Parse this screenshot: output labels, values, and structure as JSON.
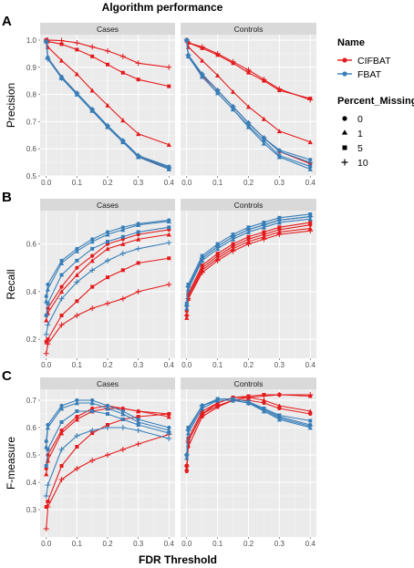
{
  "title": "Algorithm performance",
  "xlabel": "FDR Threshold",
  "legend": {
    "name_title": "Name",
    "names": [
      "CIFBAT",
      "FBAT"
    ],
    "missing_title": "Percent_Missing",
    "missing_levels": [
      "0",
      "1",
      "5",
      "10"
    ]
  },
  "colors": {
    "CIFBAT": "#e41a1c",
    "FBAT": "#377eb8",
    "panel_bg": "#ebebeb",
    "grid": "#ffffff",
    "strip_bg": "#d9d9d9"
  },
  "chart_data": [
    {
      "type": "line",
      "panel_label": "A",
      "ylabel": "Precision",
      "ylim": [
        0.5,
        1.02
      ],
      "yticks": [
        0.5,
        0.6,
        0.7,
        0.8,
        0.9,
        1.0
      ],
      "ytick_labels": [
        "0.5",
        "0.6",
        "0.7",
        "0.8",
        "0.9",
        "1.0"
      ],
      "facets": [
        {
          "strip": "Cases",
          "series": [
            {
              "name": "CIFBAT",
              "missing": "0",
              "values": [
                1.0,
                0.935,
                0.865,
                0.805,
                0.74,
                0.68,
                0.625,
                0.57,
                0.53
              ]
            },
            {
              "name": "CIFBAT",
              "missing": "1",
              "values": [
                1.0,
                0.975,
                0.925,
                0.875,
                0.815,
                0.76,
                0.705,
                0.655,
                0.615
              ]
            },
            {
              "name": "CIFBAT",
              "missing": "5",
              "values": [
                1.0,
                0.995,
                0.985,
                0.965,
                0.94,
                0.91,
                0.88,
                0.855,
                0.83
              ]
            },
            {
              "name": "CIFBAT",
              "missing": "10",
              "values": [
                1.0,
                1.0,
                0.998,
                0.99,
                0.975,
                0.96,
                0.94,
                0.915,
                0.9
              ]
            },
            {
              "name": "FBAT",
              "missing": "0",
              "values": [
                0.995,
                0.935,
                0.865,
                0.805,
                0.745,
                0.685,
                0.63,
                0.575,
                0.535
              ]
            },
            {
              "name": "FBAT",
              "missing": "1",
              "values": [
                0.995,
                0.935,
                0.86,
                0.8,
                0.74,
                0.68,
                0.625,
                0.57,
                0.525
              ]
            },
            {
              "name": "FBAT",
              "missing": "5",
              "values": [
                0.995,
                0.935,
                0.86,
                0.8,
                0.74,
                0.68,
                0.625,
                0.57,
                0.525
              ]
            },
            {
              "name": "FBAT",
              "missing": "10",
              "values": [
                0.995,
                0.93,
                0.86,
                0.805,
                0.745,
                0.685,
                0.63,
                0.575,
                0.53
              ]
            }
          ]
        },
        {
          "strip": "Controls",
          "series": [
            {
              "name": "CIFBAT",
              "missing": "0",
              "values": [
                1.0,
                0.94,
                0.87,
                0.815,
                0.755,
                0.695,
                0.64,
                0.59,
                0.545
              ]
            },
            {
              "name": "CIFBAT",
              "missing": "1",
              "values": [
                1.0,
                0.975,
                0.925,
                0.87,
                0.81,
                0.755,
                0.71,
                0.665,
                0.625
              ]
            },
            {
              "name": "CIFBAT",
              "missing": "5",
              "values": [
                1.0,
                0.99,
                0.97,
                0.945,
                0.915,
                0.88,
                0.85,
                0.815,
                0.785
              ]
            },
            {
              "name": "CIFBAT",
              "missing": "10",
              "values": [
                1.0,
                0.99,
                0.975,
                0.95,
                0.92,
                0.89,
                0.855,
                0.82,
                0.78
              ]
            },
            {
              "name": "FBAT",
              "missing": "0",
              "values": [
                1.0,
                0.945,
                0.875,
                0.815,
                0.755,
                0.695,
                0.64,
                0.595,
                0.56
              ]
            },
            {
              "name": "FBAT",
              "missing": "1",
              "values": [
                1.0,
                0.94,
                0.865,
                0.805,
                0.745,
                0.68,
                0.62,
                0.57,
                0.525
              ]
            },
            {
              "name": "FBAT",
              "missing": "5",
              "values": [
                1.0,
                0.94,
                0.865,
                0.805,
                0.745,
                0.685,
                0.63,
                0.575,
                0.535
              ]
            },
            {
              "name": "FBAT",
              "missing": "10",
              "values": [
                1.0,
                0.945,
                0.875,
                0.815,
                0.755,
                0.695,
                0.64,
                0.59,
                0.55
              ]
            }
          ]
        }
      ]
    },
    {
      "type": "line",
      "panel_label": "B",
      "ylabel": "Recall",
      "ylim": [
        0.12,
        0.74
      ],
      "yticks": [
        0.2,
        0.4,
        0.6
      ],
      "ytick_labels": [
        "0.2",
        "0.4",
        "0.6"
      ],
      "facets": [
        {
          "strip": "Cases",
          "series": [
            {
              "name": "CIFBAT",
              "missing": "0",
              "values": [
                0.3,
                0.33,
                0.42,
                0.5,
                0.55,
                0.6,
                0.62,
                0.64,
                0.66
              ]
            },
            {
              "name": "CIFBAT",
              "missing": "1",
              "values": [
                0.28,
                0.31,
                0.4,
                0.47,
                0.53,
                0.58,
                0.6,
                0.62,
                0.64
              ]
            },
            {
              "name": "CIFBAT",
              "missing": "5",
              "values": [
                0.19,
                0.2,
                0.3,
                0.36,
                0.42,
                0.46,
                0.49,
                0.52,
                0.54
              ]
            },
            {
              "name": "CIFBAT",
              "missing": "10",
              "values": [
                0.14,
                0.18,
                0.26,
                0.3,
                0.33,
                0.35,
                0.37,
                0.4,
                0.43
              ]
            },
            {
              "name": "FBAT",
              "missing": "0",
              "values": [
                0.38,
                0.43,
                0.53,
                0.58,
                0.62,
                0.65,
                0.67,
                0.685,
                0.7
              ]
            },
            {
              "name": "FBAT",
              "missing": "1",
              "values": [
                0.36,
                0.41,
                0.52,
                0.57,
                0.61,
                0.64,
                0.66,
                0.68,
                0.695
              ]
            },
            {
              "name": "FBAT",
              "missing": "5",
              "values": [
                0.3,
                0.35,
                0.47,
                0.53,
                0.58,
                0.61,
                0.63,
                0.65,
                0.67
              ]
            },
            {
              "name": "FBAT",
              "missing": "10",
              "values": [
                0.22,
                0.26,
                0.37,
                0.44,
                0.49,
                0.53,
                0.56,
                0.58,
                0.605
              ]
            }
          ]
        },
        {
          "strip": "Controls",
          "series": [
            {
              "name": "CIFBAT",
              "missing": "0",
              "values": [
                0.3,
                0.38,
                0.5,
                0.55,
                0.59,
                0.62,
                0.64,
                0.66,
                0.68
              ]
            },
            {
              "name": "CIFBAT",
              "missing": "1",
              "values": [
                0.29,
                0.37,
                0.49,
                0.54,
                0.58,
                0.61,
                0.63,
                0.65,
                0.665
              ]
            },
            {
              "name": "CIFBAT",
              "missing": "5",
              "values": [
                0.32,
                0.39,
                0.51,
                0.56,
                0.6,
                0.63,
                0.65,
                0.67,
                0.69
              ]
            },
            {
              "name": "CIFBAT",
              "missing": "10",
              "values": [
                0.3,
                0.37,
                0.48,
                0.53,
                0.57,
                0.6,
                0.62,
                0.64,
                0.655
              ]
            },
            {
              "name": "FBAT",
              "missing": "0",
              "values": [
                0.34,
                0.42,
                0.54,
                0.59,
                0.63,
                0.66,
                0.68,
                0.7,
                0.715
              ]
            },
            {
              "name": "FBAT",
              "missing": "1",
              "values": [
                0.33,
                0.41,
                0.53,
                0.58,
                0.62,
                0.65,
                0.67,
                0.69,
                0.705
              ]
            },
            {
              "name": "FBAT",
              "missing": "5",
              "values": [
                0.35,
                0.43,
                0.55,
                0.6,
                0.64,
                0.67,
                0.69,
                0.71,
                0.725
              ]
            },
            {
              "name": "FBAT",
              "missing": "10",
              "values": [
                0.34,
                0.42,
                0.54,
                0.59,
                0.63,
                0.66,
                0.68,
                0.7,
                0.715
              ]
            }
          ]
        }
      ]
    },
    {
      "type": "line",
      "panel_label": "C",
      "ylabel": "F-measure",
      "ylim": [
        0.2,
        0.74
      ],
      "yticks": [
        0.3,
        0.4,
        0.5,
        0.6,
        0.7
      ],
      "ytick_labels": [
        "0.3",
        "0.4",
        "0.5",
        "0.6",
        "0.7"
      ],
      "facets": [
        {
          "strip": "Cases",
          "series": [
            {
              "name": "CIFBAT",
              "missing": "0",
              "values": [
                0.45,
                0.5,
                0.59,
                0.64,
                0.67,
                0.68,
                0.67,
                0.66,
                0.65
              ]
            },
            {
              "name": "CIFBAT",
              "missing": "1",
              "values": [
                0.43,
                0.48,
                0.58,
                0.63,
                0.66,
                0.67,
                0.67,
                0.66,
                0.64
              ]
            },
            {
              "name": "CIFBAT",
              "missing": "5",
              "values": [
                0.31,
                0.33,
                0.46,
                0.53,
                0.58,
                0.61,
                0.63,
                0.64,
                0.65
              ]
            },
            {
              "name": "CIFBAT",
              "missing": "10",
              "values": [
                0.23,
                0.31,
                0.41,
                0.45,
                0.48,
                0.5,
                0.52,
                0.54,
                0.575
              ]
            },
            {
              "name": "FBAT",
              "missing": "0",
              "values": [
                0.55,
                0.61,
                0.68,
                0.7,
                0.7,
                0.68,
                0.66,
                0.63,
                0.6
              ]
            },
            {
              "name": "FBAT",
              "missing": "1",
              "values": [
                0.53,
                0.6,
                0.67,
                0.69,
                0.69,
                0.67,
                0.65,
                0.62,
                0.59
              ]
            },
            {
              "name": "FBAT",
              "missing": "5",
              "values": [
                0.46,
                0.52,
                0.62,
                0.66,
                0.66,
                0.65,
                0.63,
                0.61,
                0.58
              ]
            },
            {
              "name": "FBAT",
              "missing": "10",
              "values": [
                0.35,
                0.39,
                0.52,
                0.57,
                0.59,
                0.6,
                0.6,
                0.59,
                0.56
              ]
            }
          ]
        },
        {
          "strip": "Controls",
          "series": [
            {
              "name": "CIFBAT",
              "missing": "0",
              "values": [
                0.44,
                0.53,
                0.64,
                0.675,
                0.7,
                0.7,
                0.69,
                0.67,
                0.65
              ]
            },
            {
              "name": "CIFBAT",
              "missing": "1",
              "values": [
                0.45,
                0.55,
                0.65,
                0.69,
                0.71,
                0.71,
                0.7,
                0.68,
                0.66
              ]
            },
            {
              "name": "CIFBAT",
              "missing": "5",
              "values": [
                0.46,
                0.56,
                0.66,
                0.69,
                0.71,
                0.715,
                0.72,
                0.72,
                0.715
              ]
            },
            {
              "name": "CIFBAT",
              "missing": "10",
              "values": [
                0.46,
                0.55,
                0.65,
                0.68,
                0.7,
                0.71,
                0.715,
                0.72,
                0.72
              ]
            },
            {
              "name": "FBAT",
              "missing": "0",
              "values": [
                0.5,
                0.59,
                0.68,
                0.7,
                0.7,
                0.69,
                0.67,
                0.64,
                0.61
              ]
            },
            {
              "name": "FBAT",
              "missing": "1",
              "values": [
                0.49,
                0.58,
                0.67,
                0.7,
                0.7,
                0.69,
                0.66,
                0.63,
                0.6
              ]
            },
            {
              "name": "FBAT",
              "missing": "5",
              "values": [
                0.5,
                0.6,
                0.68,
                0.705,
                0.705,
                0.695,
                0.67,
                0.645,
                0.625
              ]
            },
            {
              "name": "FBAT",
              "missing": "10",
              "values": [
                0.5,
                0.59,
                0.68,
                0.7,
                0.7,
                0.69,
                0.665,
                0.635,
                0.605
              ]
            }
          ]
        }
      ]
    }
  ],
  "x_values": [
    0.0,
    0.005,
    0.05,
    0.1,
    0.15,
    0.2,
    0.25,
    0.3,
    0.4
  ],
  "x_ticks": [
    0.0,
    0.1,
    0.2,
    0.3,
    0.4
  ],
  "x_tick_labels": [
    "0.0",
    "0.1",
    "0.2",
    "0.3",
    "0.4"
  ],
  "xlim": [
    -0.02,
    0.42
  ]
}
